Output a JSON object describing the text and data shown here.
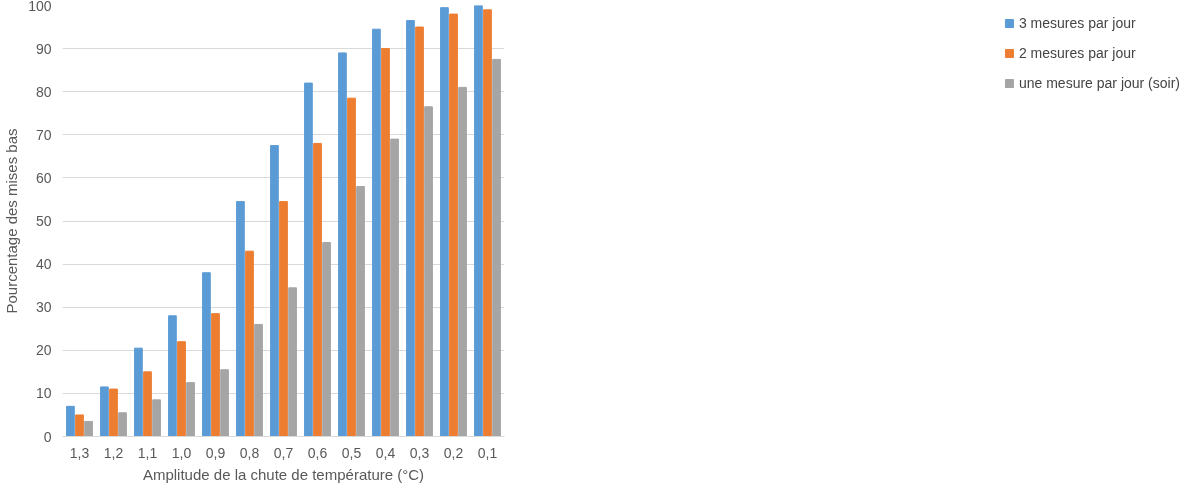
{
  "chart_data": {
    "type": "bar",
    "xlabel": "Amplitude de la chute de température (°C)",
    "ylabel": "Pourcentage des mises bas",
    "categories": [
      "1,3",
      "1,2",
      "1,1",
      "1,0",
      "0,9",
      "0,8",
      "0,7",
      "0,6",
      "0,5",
      "0,4",
      "0,3",
      "0,2",
      "0,1"
    ],
    "series": [
      {
        "name": "3 mesures par jour",
        "color": "#5b9bd5",
        "values": [
          7,
          11.5,
          20.5,
          28,
          38,
          54.5,
          67.5,
          82,
          89,
          94.5,
          96.5,
          99.5,
          100
        ]
      },
      {
        "name": "2 mesures par jour",
        "color": "#ed7d31",
        "values": [
          5,
          11,
          15,
          22,
          28.5,
          43,
          54.5,
          68,
          78.5,
          90,
          95,
          98,
          99
        ]
      },
      {
        "name": "une mesure par jour (soir)",
        "color": "#a5a5a5",
        "values": [
          3.5,
          5.5,
          8.5,
          12.5,
          15.5,
          26,
          34.5,
          45,
          58,
          69,
          76.5,
          81,
          87.5
        ]
      }
    ],
    "ylim": [
      0,
      100
    ],
    "yticks": [
      0,
      10,
      20,
      30,
      40,
      50,
      60,
      70,
      80,
      90,
      100
    ],
    "grid": "y",
    "legend": "right"
  }
}
